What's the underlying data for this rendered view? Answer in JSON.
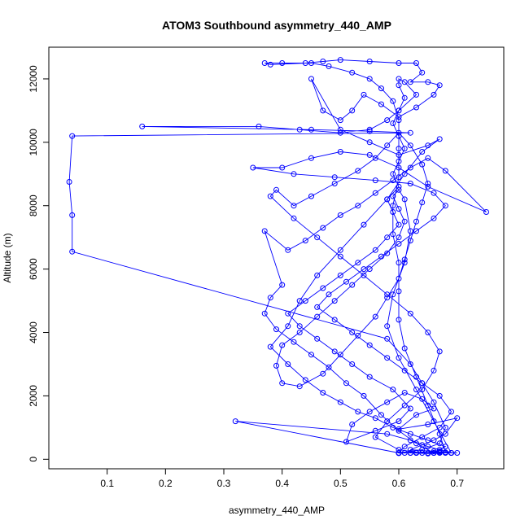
{
  "chart_data": {
    "type": "scatter",
    "title": "ATOM3 Southbound asymmetry_440_AMP",
    "xlabel": "asymmetry_440_AMP",
    "ylabel": "Altitude (m)",
    "xlim": [
      0.0,
      0.78
    ],
    "ylim": [
      -300,
      13000
    ],
    "xticks": [
      "0.1",
      "0.2",
      "0.3",
      "0.4",
      "0.5",
      "0.6",
      "0.7"
    ],
    "yticks": [
      "0",
      "2000",
      "4000",
      "6000",
      "8000",
      "10000",
      "12000"
    ],
    "grid": false,
    "legend": "none",
    "colors": {
      "series": "#0000ff",
      "axes": "#000000",
      "background": "#ffffff"
    },
    "series": [
      {
        "marker": "open-circle",
        "line": true,
        "points": [
          [
            0.62,
            200
          ],
          [
            0.65,
            180
          ],
          [
            0.68,
            200
          ],
          [
            0.67,
            220
          ],
          [
            0.63,
            210
          ],
          [
            0.6,
            190
          ],
          [
            0.61,
            200
          ],
          [
            0.69,
            200
          ],
          [
            0.66,
            250
          ],
          [
            0.62,
            300
          ],
          [
            0.64,
            450
          ],
          [
            0.66,
            600
          ],
          [
            0.68,
            800
          ],
          [
            0.7,
            1300
          ],
          [
            0.65,
            1100
          ],
          [
            0.6,
            950
          ],
          [
            0.63,
            1400
          ],
          [
            0.66,
            1600
          ],
          [
            0.64,
            1900
          ],
          [
            0.61,
            2100
          ],
          [
            0.58,
            1800
          ],
          [
            0.55,
            1500
          ],
          [
            0.52,
            1100
          ],
          [
            0.51,
            550
          ],
          [
            0.56,
            900
          ],
          [
            0.6,
            1200
          ],
          [
            0.62,
            1600
          ],
          [
            0.59,
            2200
          ],
          [
            0.55,
            2600
          ],
          [
            0.52,
            3000
          ],
          [
            0.49,
            3400
          ],
          [
            0.46,
            3800
          ],
          [
            0.43,
            4200
          ],
          [
            0.41,
            4600
          ],
          [
            0.44,
            5000
          ],
          [
            0.47,
            5400
          ],
          [
            0.5,
            5800
          ],
          [
            0.53,
            6200
          ],
          [
            0.56,
            6600
          ],
          [
            0.58,
            7000
          ],
          [
            0.6,
            7400
          ],
          [
            0.59,
            7800
          ],
          [
            0.58,
            8200
          ],
          [
            0.6,
            8600
          ],
          [
            0.59,
            9000
          ],
          [
            0.6,
            9400
          ],
          [
            0.61,
            9800
          ],
          [
            0.6,
            10200
          ],
          [
            0.59,
            10600
          ],
          [
            0.6,
            11000
          ],
          [
            0.61,
            11400
          ],
          [
            0.6,
            11800
          ],
          [
            0.6,
            12000
          ],
          [
            0.61,
            11900
          ],
          [
            0.63,
            11500
          ],
          [
            0.6,
            11000
          ],
          [
            0.58,
            10700
          ],
          [
            0.55,
            10400
          ],
          [
            0.5,
            10300
          ],
          [
            0.43,
            10400
          ],
          [
            0.36,
            10500
          ],
          [
            0.16,
            10500
          ],
          [
            0.45,
            10400
          ],
          [
            0.55,
            10350
          ],
          [
            0.62,
            10300
          ],
          [
            0.04,
            10200
          ],
          [
            0.035,
            8750
          ],
          [
            0.04,
            7700
          ],
          [
            0.04,
            6550
          ],
          [
            0.58,
            3800
          ],
          [
            0.62,
            3000
          ],
          [
            0.64,
            2400
          ],
          [
            0.66,
            1800
          ],
          [
            0.68,
            1000
          ],
          [
            0.67,
            500
          ],
          [
            0.64,
            300
          ],
          [
            0.6,
            200
          ],
          [
            0.32,
            1200
          ],
          [
            0.58,
            800
          ],
          [
            0.62,
            600
          ],
          [
            0.65,
            400
          ],
          [
            0.67,
            300
          ],
          [
            0.69,
            200
          ],
          [
            0.7,
            200
          ],
          [
            0.66,
            200
          ],
          [
            0.63,
            500
          ],
          [
            0.6,
            900
          ],
          [
            0.57,
            1400
          ],
          [
            0.54,
            2000
          ],
          [
            0.51,
            2400
          ],
          [
            0.48,
            2900
          ],
          [
            0.45,
            3300
          ],
          [
            0.42,
            3700
          ],
          [
            0.39,
            4100
          ],
          [
            0.37,
            4600
          ],
          [
            0.38,
            5100
          ],
          [
            0.4,
            5500
          ],
          [
            0.37,
            7200
          ],
          [
            0.41,
            6600
          ],
          [
            0.44,
            6900
          ],
          [
            0.47,
            7300
          ],
          [
            0.5,
            7700
          ],
          [
            0.53,
            8000
          ],
          [
            0.56,
            8400
          ],
          [
            0.59,
            8800
          ],
          [
            0.62,
            9200
          ],
          [
            0.65,
            9500
          ],
          [
            0.68,
            9100
          ],
          [
            0.75,
            7800
          ],
          [
            0.65,
            8600
          ],
          [
            0.6,
            9200
          ],
          [
            0.55,
            9600
          ],
          [
            0.5,
            9700
          ],
          [
            0.45,
            9500
          ],
          [
            0.4,
            9200
          ],
          [
            0.35,
            9200
          ],
          [
            0.42,
            9000
          ],
          [
            0.49,
            8900
          ],
          [
            0.56,
            8800
          ],
          [
            0.62,
            8700
          ],
          [
            0.66,
            8400
          ],
          [
            0.68,
            8000
          ],
          [
            0.66,
            7600
          ],
          [
            0.63,
            7200
          ],
          [
            0.6,
            6800
          ],
          [
            0.57,
            6400
          ],
          [
            0.54,
            6000
          ],
          [
            0.51,
            5600
          ],
          [
            0.48,
            5200
          ],
          [
            0.46,
            4800
          ],
          [
            0.49,
            4400
          ],
          [
            0.52,
            4000
          ],
          [
            0.55,
            3600
          ],
          [
            0.58,
            3200
          ],
          [
            0.61,
            2800
          ],
          [
            0.64,
            2400
          ],
          [
            0.67,
            2000
          ],
          [
            0.69,
            1500
          ],
          [
            0.67,
            1000
          ],
          [
            0.64,
            700
          ],
          [
            0.61,
            400
          ],
          [
            0.6,
            200
          ],
          [
            0.63,
            200
          ],
          [
            0.66,
            200
          ],
          [
            0.68,
            220
          ],
          [
            0.67,
            800
          ],
          [
            0.65,
            1700
          ],
          [
            0.63,
            2600
          ],
          [
            0.61,
            3500
          ],
          [
            0.6,
            4400
          ],
          [
            0.6,
            5300
          ],
          [
            0.6,
            6200
          ],
          [
            0.59,
            7100
          ],
          [
            0.59,
            8000
          ],
          [
            0.6,
            8900
          ],
          [
            0.6,
            9800
          ],
          [
            0.6,
            10700
          ],
          [
            0.59,
            11300
          ],
          [
            0.57,
            11700
          ],
          [
            0.55,
            12000
          ],
          [
            0.52,
            12200
          ],
          [
            0.48,
            12400
          ],
          [
            0.45,
            12500
          ],
          [
            0.4,
            12500
          ],
          [
            0.37,
            12500
          ],
          [
            0.38,
            12450
          ],
          [
            0.44,
            12500
          ],
          [
            0.47,
            12550
          ],
          [
            0.5,
            12600
          ],
          [
            0.55,
            12550
          ],
          [
            0.6,
            12500
          ],
          [
            0.63,
            12500
          ],
          [
            0.64,
            12200
          ],
          [
            0.62,
            11900
          ],
          [
            0.65,
            11900
          ],
          [
            0.67,
            11800
          ],
          [
            0.66,
            11500
          ],
          [
            0.63,
            11100
          ],
          [
            0.6,
            10800
          ],
          [
            0.57,
            11200
          ],
          [
            0.54,
            11500
          ],
          [
            0.52,
            11000
          ],
          [
            0.5,
            10700
          ],
          [
            0.47,
            11000
          ],
          [
            0.45,
            12000
          ],
          [
            0.5,
            10400
          ],
          [
            0.55,
            10000
          ],
          [
            0.6,
            9600
          ],
          [
            0.65,
            9900
          ],
          [
            0.67,
            10100
          ],
          [
            0.64,
            9700
          ],
          [
            0.61,
            9000
          ],
          [
            0.58,
            8200
          ],
          [
            0.54,
            7400
          ],
          [
            0.5,
            6600
          ],
          [
            0.46,
            5800
          ],
          [
            0.43,
            5000
          ],
          [
            0.41,
            4200
          ],
          [
            0.38,
            3550
          ],
          [
            0.41,
            3000
          ],
          [
            0.44,
            2500
          ],
          [
            0.47,
            2100
          ],
          [
            0.5,
            1800
          ],
          [
            0.53,
            1500
          ],
          [
            0.56,
            1300
          ],
          [
            0.59,
            1000
          ],
          [
            0.62,
            800
          ],
          [
            0.65,
            600
          ],
          [
            0.68,
            400
          ],
          [
            0.66,
            200
          ],
          [
            0.63,
            200
          ],
          [
            0.6,
            200
          ],
          [
            0.62,
            200
          ],
          [
            0.65,
            200
          ],
          [
            0.67,
            200
          ],
          [
            0.69,
            200
          ],
          [
            0.66,
            1200
          ],
          [
            0.63,
            2200
          ],
          [
            0.6,
            3200
          ],
          [
            0.58,
            4200
          ],
          [
            0.59,
            5200
          ],
          [
            0.61,
            6200
          ],
          [
            0.62,
            7200
          ],
          [
            0.61,
            8200
          ],
          [
            0.6,
            8500
          ],
          [
            0.59,
            8300
          ],
          [
            0.6,
            7900
          ],
          [
            0.61,
            7500
          ],
          [
            0.6,
            7000
          ],
          [
            0.58,
            6500
          ],
          [
            0.55,
            6000
          ],
          [
            0.52,
            5500
          ],
          [
            0.49,
            5000
          ],
          [
            0.46,
            4500
          ],
          [
            0.43,
            4000
          ],
          [
            0.4,
            3600
          ],
          [
            0.39,
            2950
          ],
          [
            0.4,
            2400
          ],
          [
            0.43,
            2300
          ],
          [
            0.47,
            2700
          ],
          [
            0.5,
            3300
          ],
          [
            0.53,
            3900
          ],
          [
            0.56,
            4500
          ],
          [
            0.58,
            5100
          ],
          [
            0.6,
            5700
          ],
          [
            0.61,
            6300
          ],
          [
            0.62,
            6900
          ],
          [
            0.63,
            7500
          ],
          [
            0.64,
            8100
          ],
          [
            0.65,
            8700
          ],
          [
            0.64,
            9300
          ],
          [
            0.62,
            9900
          ],
          [
            0.6,
            10300
          ],
          [
            0.58,
            9900
          ],
          [
            0.56,
            9500
          ],
          [
            0.53,
            9100
          ],
          [
            0.49,
            8700
          ],
          [
            0.45,
            8300
          ],
          [
            0.42,
            8000
          ],
          [
            0.39,
            8500
          ],
          [
            0.38,
            8300
          ],
          [
            0.42,
            7600
          ],
          [
            0.46,
            7000
          ],
          [
            0.5,
            6400
          ],
          [
            0.54,
            5800
          ],
          [
            0.58,
            5200
          ],
          [
            0.62,
            4600
          ],
          [
            0.65,
            4000
          ],
          [
            0.67,
            3400
          ],
          [
            0.66,
            2800
          ],
          [
            0.64,
            2200
          ],
          [
            0.61,
            1700
          ],
          [
            0.58,
            1200
          ],
          [
            0.56,
            700
          ],
          [
            0.6,
            300
          ],
          [
            0.64,
            200
          ],
          [
            0.67,
            250
          ]
        ]
      }
    ]
  }
}
